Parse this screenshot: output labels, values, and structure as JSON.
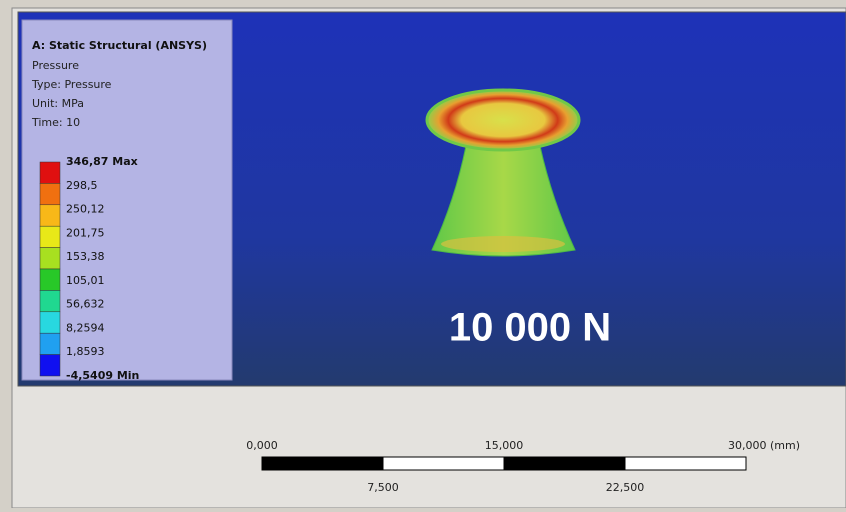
{
  "legend": {
    "title": "A: Static Structural (ANSYS)",
    "lines": [
      "Pressure",
      "Type: Pressure",
      "Unit: MPa",
      "Time: 10"
    ],
    "labels": [
      "346,87 Max",
      "298,5",
      "250,12",
      "201,75",
      "153,38",
      "105,01",
      "56,632",
      "8,2594",
      "1,8593",
      "-4,5409 Min"
    ]
  },
  "overlay": {
    "text": "10 000 N"
  },
  "scale": {
    "top_labels": [
      "0,000",
      "15,000",
      "30,000 (mm)"
    ],
    "bottom_labels": [
      "7,500",
      "22,500"
    ]
  }
}
